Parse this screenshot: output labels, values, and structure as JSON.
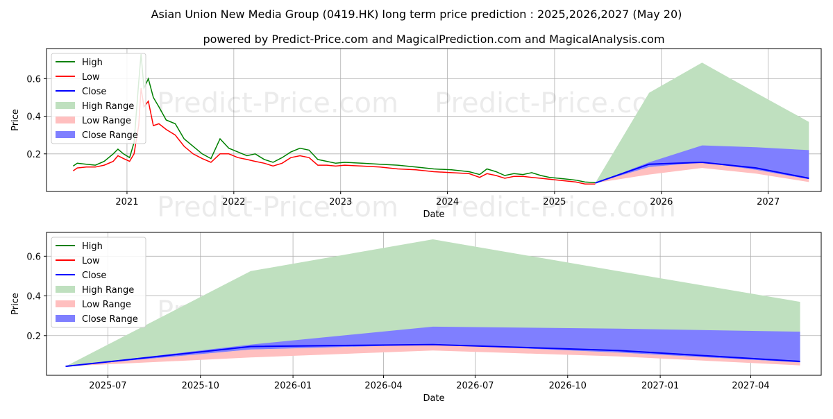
{
  "title": "Asian Union New Media Group (0419.HK) long term price prediction : 2025,2026,2027 (May 20)",
  "subtitle": "powered by Predict-Price.com and MagicalPrediction.com and MagicalAnalysis.com",
  "watermark": "Predict-Price.com",
  "colors": {
    "high": "#008000",
    "low": "#ff0000",
    "close": "#0000ff",
    "high_range": "#bfe0bf",
    "low_range": "#ffbfbf",
    "close_range": "#7f7fff"
  },
  "legend": [
    "High",
    "Low",
    "Close",
    "High Range",
    "Low Range",
    "Close Range"
  ],
  "chart_data": [
    {
      "type": "line",
      "name": "history and prediction",
      "xlabel": "Date",
      "ylabel": "Price",
      "xlim": [
        "2020-04-01",
        "2027-07-01"
      ],
      "ylim": [
        0,
        0.76
      ],
      "xticks": [
        "2021",
        "2022",
        "2023",
        "2024",
        "2025",
        "2026",
        "2027"
      ],
      "yticks": [
        0.2,
        0.4,
        0.6
      ],
      "grid": true,
      "legend_position": "top-left",
      "history": [
        [
          "2020-07-01",
          0.135,
          0.11,
          0.12
        ],
        [
          "2020-07-15",
          0.15,
          0.125,
          0.14
        ],
        [
          "2020-08-15",
          0.145,
          0.13,
          0.135
        ],
        [
          "2020-09-15",
          0.14,
          0.13,
          0.135
        ],
        [
          "2020-10-15",
          0.16,
          0.14,
          0.15
        ],
        [
          "2020-11-15",
          0.2,
          0.16,
          0.18
        ],
        [
          "2020-12-01",
          0.225,
          0.19,
          0.21
        ],
        [
          "2020-12-20",
          0.2,
          0.175,
          0.185
        ],
        [
          "2021-01-10",
          0.18,
          0.16,
          0.17
        ],
        [
          "2021-01-25",
          0.26,
          0.2,
          0.23
        ],
        [
          "2021-02-10",
          0.58,
          0.35,
          0.5
        ],
        [
          "2021-02-18",
          0.73,
          0.55,
          0.62
        ],
        [
          "2021-02-28",
          0.55,
          0.45,
          0.5
        ],
        [
          "2021-03-15",
          0.6,
          0.48,
          0.55
        ],
        [
          "2021-04-01",
          0.5,
          0.35,
          0.44
        ],
        [
          "2021-04-20",
          0.45,
          0.36,
          0.4
        ],
        [
          "2021-05-15",
          0.38,
          0.33,
          0.35
        ],
        [
          "2021-06-15",
          0.36,
          0.3,
          0.33
        ],
        [
          "2021-07-15",
          0.28,
          0.24,
          0.26
        ],
        [
          "2021-08-15",
          0.24,
          0.2,
          0.22
        ],
        [
          "2021-09-15",
          0.2,
          0.175,
          0.19
        ],
        [
          "2021-10-15",
          0.175,
          0.155,
          0.165
        ],
        [
          "2021-11-15",
          0.28,
          0.2,
          0.24
        ],
        [
          "2021-12-15",
          0.23,
          0.2,
          0.21
        ],
        [
          "2022-01-15",
          0.21,
          0.18,
          0.195
        ],
        [
          "2022-02-15",
          0.19,
          0.17,
          0.18
        ],
        [
          "2022-03-15",
          0.2,
          0.16,
          0.175
        ],
        [
          "2022-04-15",
          0.17,
          0.15,
          0.16
        ],
        [
          "2022-05-15",
          0.155,
          0.135,
          0.145
        ],
        [
          "2022-06-15",
          0.18,
          0.15,
          0.165
        ],
        [
          "2022-07-15",
          0.21,
          0.18,
          0.195
        ],
        [
          "2022-08-15",
          0.23,
          0.19,
          0.21
        ],
        [
          "2022-09-15",
          0.22,
          0.18,
          0.2
        ],
        [
          "2022-10-15",
          0.17,
          0.14,
          0.155
        ],
        [
          "2022-11-15",
          0.16,
          0.14,
          0.15
        ],
        [
          "2022-12-15",
          0.15,
          0.135,
          0.145
        ],
        [
          "2023-01-15",
          0.155,
          0.14,
          0.148
        ],
        [
          "2023-03-15",
          0.15,
          0.135,
          0.142
        ],
        [
          "2023-05-15",
          0.145,
          0.13,
          0.138
        ],
        [
          "2023-07-15",
          0.14,
          0.12,
          0.13
        ],
        [
          "2023-09-15",
          0.13,
          0.115,
          0.122
        ],
        [
          "2023-11-15",
          0.12,
          0.105,
          0.112
        ],
        [
          "2024-01-15",
          0.115,
          0.1,
          0.108
        ],
        [
          "2024-03-15",
          0.105,
          0.095,
          0.1
        ],
        [
          "2024-04-20",
          0.09,
          0.075,
          0.08
        ],
        [
          "2024-05-15",
          0.12,
          0.095,
          0.105
        ],
        [
          "2024-06-15",
          0.105,
          0.085,
          0.095
        ],
        [
          "2024-07-15",
          0.085,
          0.07,
          0.078
        ],
        [
          "2024-08-15",
          0.095,
          0.08,
          0.088
        ],
        [
          "2024-09-15",
          0.09,
          0.08,
          0.085
        ],
        [
          "2024-10-15",
          0.1,
          0.075,
          0.085
        ],
        [
          "2024-11-15",
          0.085,
          0.07,
          0.078
        ],
        [
          "2024-12-15",
          0.075,
          0.065,
          0.07
        ],
        [
          "2025-01-15",
          0.07,
          0.06,
          0.065
        ],
        [
          "2025-02-15",
          0.065,
          0.055,
          0.06
        ],
        [
          "2025-03-15",
          0.06,
          0.05,
          0.055
        ],
        [
          "2025-04-15",
          0.05,
          0.04,
          0.045
        ],
        [
          "2025-05-20",
          0.047,
          0.04,
          0.045
        ]
      ],
      "prediction": [
        [
          "2025-05-20",
          0.045,
          0.045,
          0.045,
          0.045,
          0.045
        ],
        [
          "2025-11-20",
          0.525,
          0.155,
          0.09,
          0.13,
          0.145
        ],
        [
          "2026-05-20",
          0.685,
          0.245,
          0.125,
          0.155,
          0.155
        ],
        [
          "2026-11-20",
          0.525,
          0.235,
          0.095,
          0.115,
          0.125
        ],
        [
          "2027-05-20",
          0.37,
          0.22,
          0.05,
          0.065,
          0.07
        ]
      ]
    },
    {
      "type": "area",
      "name": "prediction detail",
      "xlabel": "Date",
      "ylabel": "Price",
      "xlim": [
        "2025-05-01",
        "2027-06-10"
      ],
      "ylim": [
        0,
        0.72
      ],
      "xticks": [
        "2025-07",
        "2025-10",
        "2026-01",
        "2026-04",
        "2026-07",
        "2026-10",
        "2027-01",
        "2027-04"
      ],
      "yticks": [
        0.2,
        0.4,
        0.6
      ],
      "grid": true,
      "legend_position": "top-left"
    }
  ]
}
